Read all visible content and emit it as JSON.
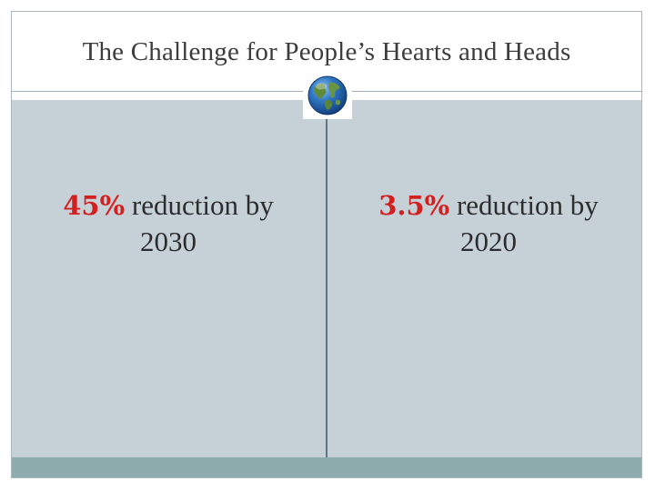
{
  "slide": {
    "title": "The Challenge for People’s Hearts and Heads"
  },
  "left_stat": {
    "percent": "45%",
    "text": " reduction by",
    "year": "2030"
  },
  "right_stat": {
    "percent": "3.5%",
    "text": " reduction by",
    "year": "2020"
  },
  "icons": {
    "center": "globe-icon"
  },
  "colors": {
    "accent_red": "#d41f1f",
    "content_background": "#c5d0d7",
    "footer_bar": "#8eacad",
    "divider": "#5f7480"
  }
}
